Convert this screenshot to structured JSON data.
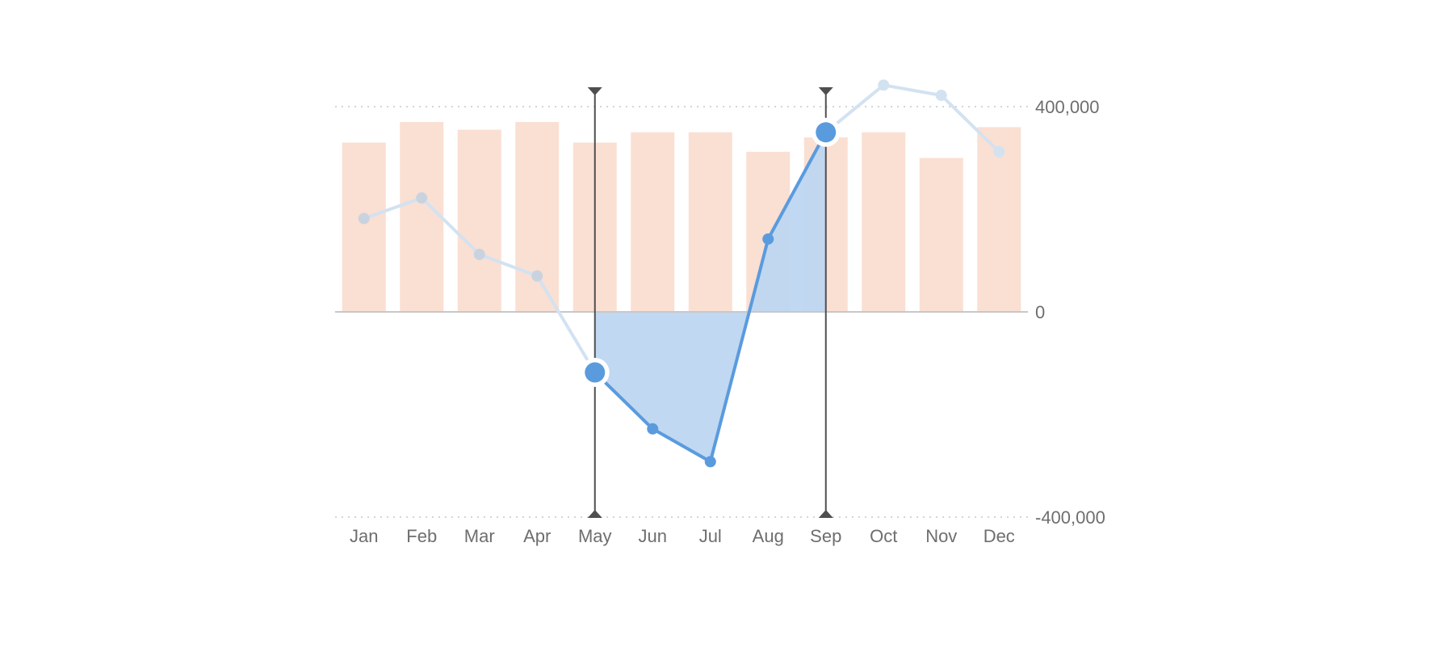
{
  "chart_data": {
    "type": "bar",
    "title": "",
    "xlabel": "",
    "ylabel": "",
    "categories": [
      "Jan",
      "Feb",
      "Mar",
      "Apr",
      "May",
      "Jun",
      "Jul",
      "Aug",
      "Sep",
      "Oct",
      "Nov",
      "Dec"
    ],
    "ylim": [
      -400000,
      400000
    ],
    "y_ticks": [
      {
        "value": 400000,
        "label": "400,000"
      },
      {
        "value": 0,
        "label": "0"
      },
      {
        "value": -400000,
        "label": "-400,000"
      }
    ],
    "y_axis_position": "right",
    "grid": "dotted lines at top and bottom ticks",
    "series": [
      {
        "type": "bar",
        "color": "#fadfd3",
        "values": [
          330000,
          370000,
          355000,
          370000,
          330000,
          350000,
          350000,
          312000,
          340000,
          350000,
          300000,
          360000
        ]
      },
      {
        "type": "line",
        "color": "#5a9bde",
        "values": [
          182000,
          222000,
          112000,
          70000,
          -118000,
          -228000,
          -292000,
          142000,
          350000,
          442000,
          422000,
          312000
        ]
      }
    ],
    "selection": {
      "start": "May",
      "end": "Sep",
      "start_value": -118000,
      "end_value": 350000
    }
  },
  "colors": {
    "bar": "#fadfd3",
    "line": "#5a9bde",
    "line_faded": "#d3e2f1",
    "area": "#bdd6f0",
    "marker": "#4f4f4f",
    "zero_line": "#c7c7cc",
    "grid": "#c7c7cc",
    "label": "#6e6e6e"
  }
}
